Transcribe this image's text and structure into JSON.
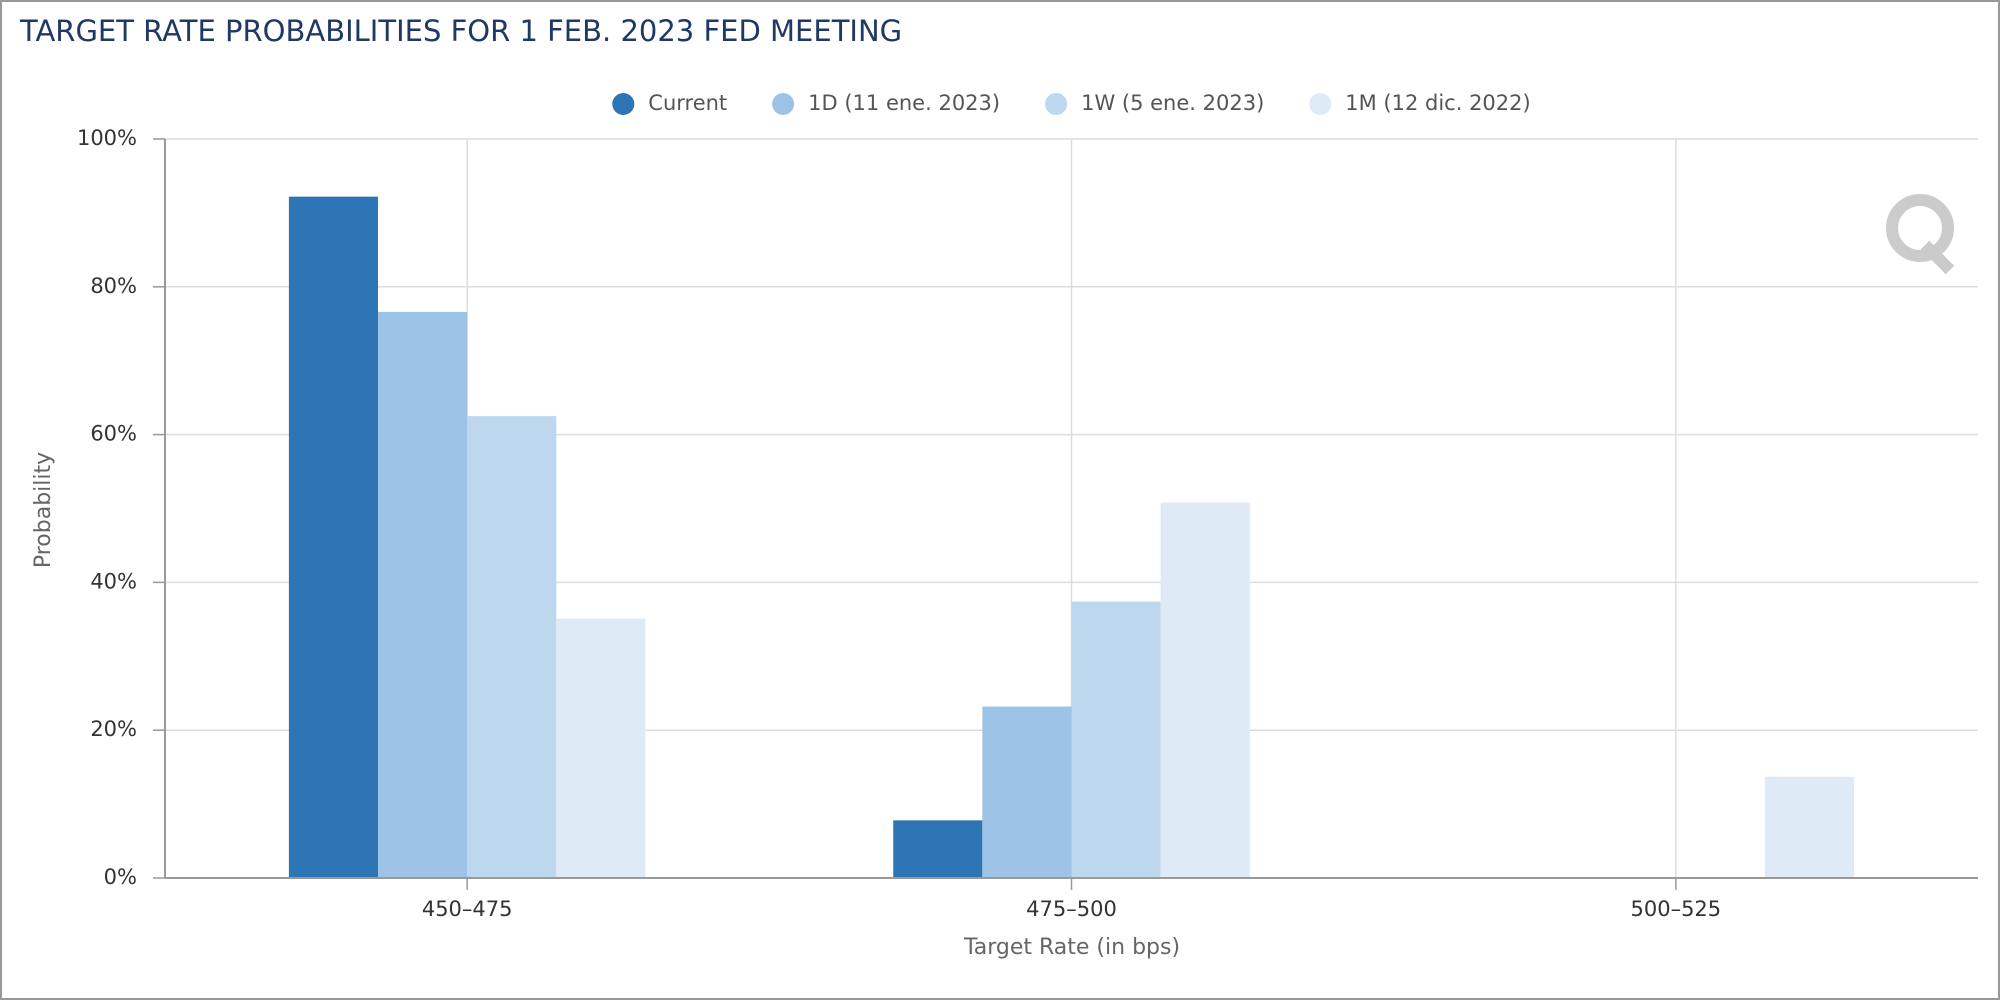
{
  "chart_data": {
    "type": "bar",
    "title": "TARGET RATE PROBABILITIES FOR 1 FEB. 2023 FED MEETING",
    "x_label": "Target Rate (in bps)",
    "y_label": "Probability",
    "categories": [
      "450–475",
      "475–500",
      "500–525"
    ],
    "series": [
      {
        "name": "Current",
        "color": "#2e75b6",
        "values": [
          92.2,
          7.8,
          0
        ]
      },
      {
        "name": "1D (11 ene. 2023)",
        "color": "#9dc3e6",
        "values": [
          76.6,
          23.2,
          0
        ]
      },
      {
        "name": "1W (5 ene. 2023)",
        "color": "#bdd7ee",
        "values": [
          62.5,
          37.4,
          0
        ]
      },
      {
        "name": "1M (12 dic. 2022)",
        "color": "#deebf7",
        "values": [
          35.1,
          50.8,
          13.7
        ]
      }
    ],
    "ylim": [
      0,
      100
    ],
    "yticks": [
      {
        "value": 0,
        "label": "0%"
      },
      {
        "value": 20,
        "label": "20%"
      },
      {
        "value": 40,
        "label": "40%"
      },
      {
        "value": 60,
        "label": "60%"
      },
      {
        "value": 80,
        "label": "80%"
      },
      {
        "value": 100,
        "label": "100%"
      }
    ],
    "grid": true
  }
}
